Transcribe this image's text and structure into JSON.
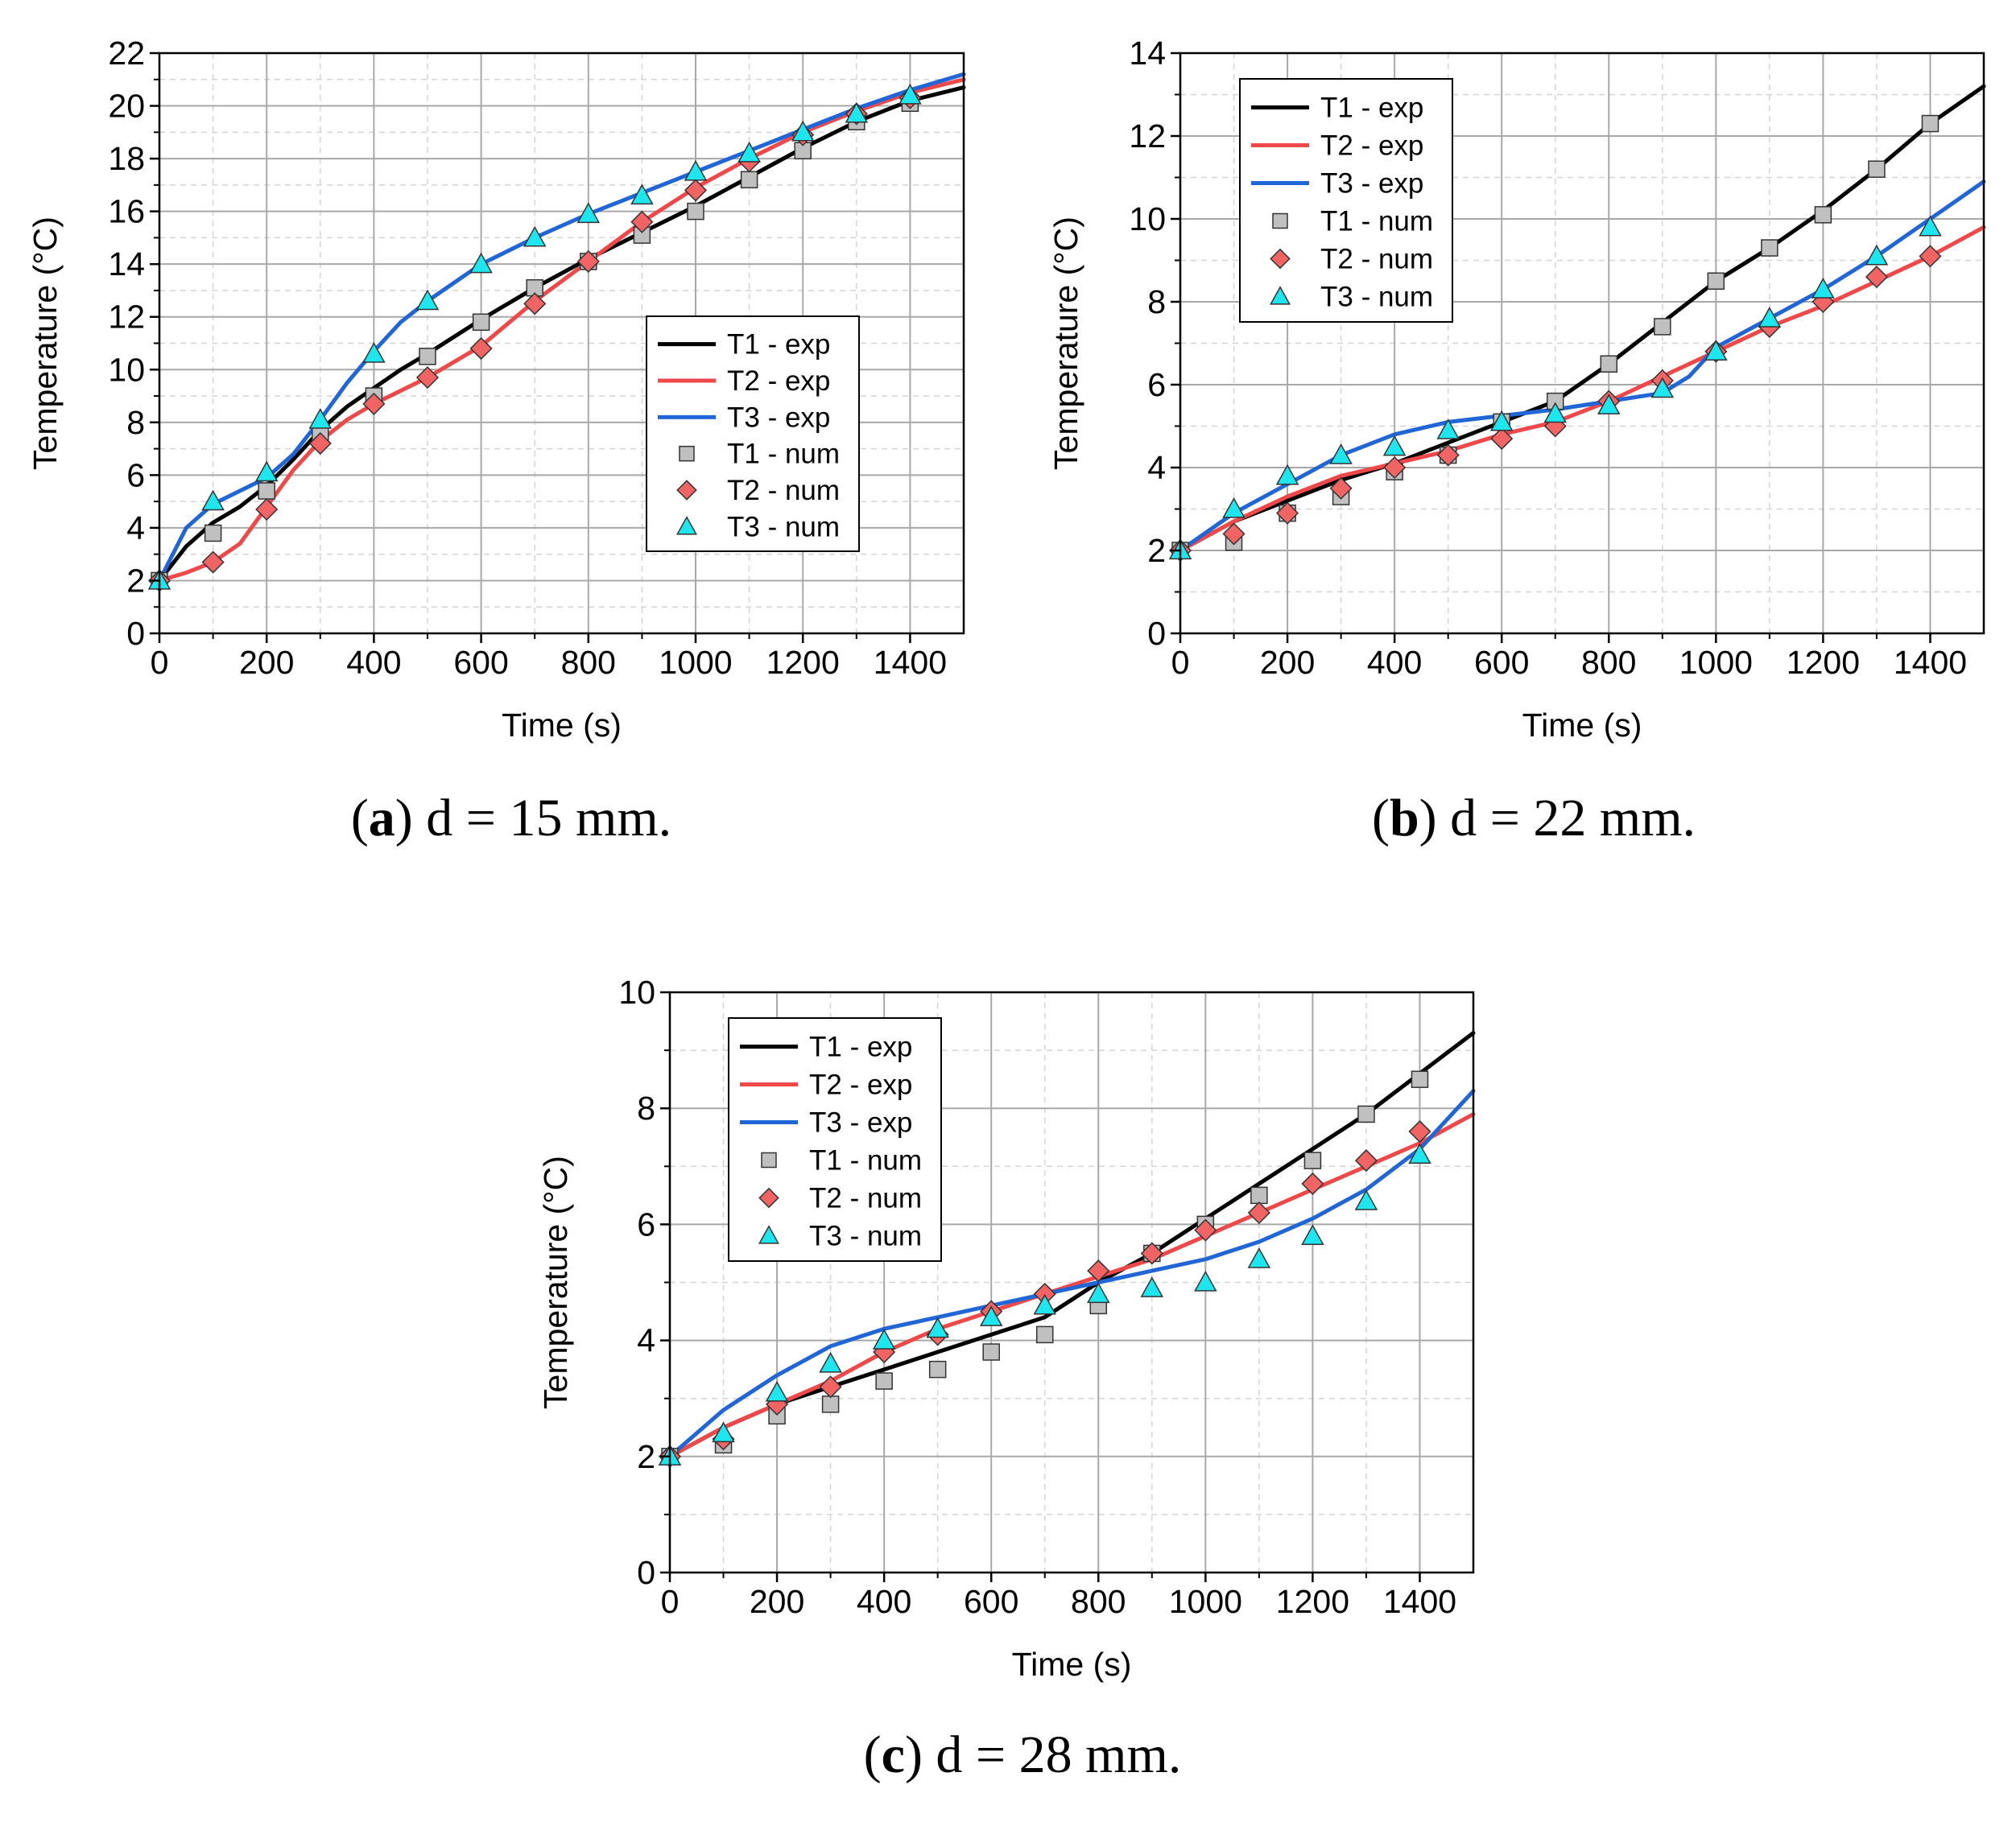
{
  "colors": {
    "T1": "#000000",
    "T2": "#f04848",
    "T3": "#2166d6",
    "T1_marker": "#c0c0c0",
    "T2_marker": "#f06464",
    "T3_marker": "#1ee6ee"
  },
  "chart_data": [
    {
      "type": "line",
      "panel": "a",
      "caption": {
        "label": "a",
        "text": "d = 15 mm."
      },
      "xlabel": "Time (s)",
      "ylabel": "Temperature (°C)",
      "xlim": [
        0,
        1500
      ],
      "ylim": [
        0,
        22
      ],
      "xticks": [
        0,
        200,
        400,
        600,
        800,
        1000,
        1200,
        1400
      ],
      "yticks": [
        0,
        2,
        4,
        6,
        8,
        10,
        12,
        14,
        16,
        18,
        20,
        22
      ],
      "grid": true,
      "legend_position": "center-right",
      "legend": [
        "T1 - exp",
        "T2 - exp",
        "T3 - exp",
        "T1 - num",
        "T2 - num",
        "T3 - num"
      ],
      "series": [
        {
          "name": "T1 - exp",
          "style": "line",
          "color_key": "T1",
          "x": [
            0,
            50,
            100,
            150,
            200,
            250,
            300,
            350,
            400,
            450,
            500,
            600,
            700,
            800,
            900,
            1000,
            1100,
            1200,
            1300,
            1400,
            1500
          ],
          "y": [
            2.0,
            3.3,
            4.2,
            4.8,
            5.6,
            6.6,
            7.7,
            8.6,
            9.3,
            10.0,
            10.6,
            11.9,
            13.1,
            14.2,
            15.2,
            16.2,
            17.3,
            18.4,
            19.4,
            20.2,
            20.7
          ]
        },
        {
          "name": "T2 - exp",
          "style": "line",
          "color_key": "T2",
          "x": [
            0,
            50,
            100,
            150,
            200,
            250,
            300,
            350,
            400,
            500,
            600,
            700,
            800,
            900,
            1000,
            1100,
            1200,
            1300,
            1400,
            1500
          ],
          "y": [
            2.0,
            2.3,
            2.7,
            3.4,
            4.8,
            6.2,
            7.3,
            8.1,
            8.7,
            9.7,
            10.9,
            12.6,
            14.1,
            15.6,
            16.9,
            18.0,
            19.0,
            19.8,
            20.5,
            21.0
          ]
        },
        {
          "name": "T3 - exp",
          "style": "line",
          "color_key": "T3",
          "x": [
            0,
            50,
            100,
            150,
            200,
            250,
            300,
            350,
            400,
            450,
            500,
            600,
            700,
            800,
            900,
            1000,
            1100,
            1200,
            1300,
            1400,
            1500
          ],
          "y": [
            2.0,
            4.0,
            4.9,
            5.4,
            5.9,
            6.8,
            8.1,
            9.5,
            10.7,
            11.8,
            12.6,
            14.0,
            15.0,
            15.9,
            16.7,
            17.5,
            18.3,
            19.1,
            19.9,
            20.6,
            21.2
          ]
        },
        {
          "name": "T1 - num",
          "style": "square",
          "color_key": "T1_marker",
          "x": [
            0,
            100,
            200,
            300,
            400,
            500,
            600,
            700,
            800,
            900,
            1000,
            1100,
            1200,
            1300,
            1400
          ],
          "y": [
            2.0,
            3.8,
            5.4,
            7.6,
            9.0,
            10.5,
            11.8,
            13.1,
            14.1,
            15.1,
            16.0,
            17.2,
            18.3,
            19.4,
            20.1
          ]
        },
        {
          "name": "T2 - num",
          "style": "diamond",
          "color_key": "T2_marker",
          "x": [
            0,
            100,
            200,
            300,
            400,
            500,
            600,
            700,
            800,
            900,
            1000,
            1100,
            1200,
            1300,
            1400
          ],
          "y": [
            2.0,
            2.7,
            4.7,
            7.2,
            8.7,
            9.7,
            10.8,
            12.5,
            14.1,
            15.6,
            16.8,
            17.9,
            18.9,
            19.7,
            20.3
          ]
        },
        {
          "name": "T3 - num",
          "style": "triangle",
          "color_key": "T3_marker",
          "x": [
            0,
            100,
            200,
            300,
            400,
            500,
            600,
            700,
            800,
            900,
            1000,
            1100,
            1200,
            1300,
            1400
          ],
          "y": [
            2.0,
            5.0,
            6.1,
            8.1,
            10.6,
            12.6,
            14.0,
            15.0,
            15.9,
            16.6,
            17.5,
            18.2,
            19.0,
            19.7,
            20.4
          ]
        }
      ]
    },
    {
      "type": "line",
      "panel": "b",
      "caption": {
        "label": "b",
        "text": "d = 22 mm."
      },
      "xlabel": "Time (s)",
      "ylabel": "Temperature (°C)",
      "xlim": [
        0,
        1500
      ],
      "ylim": [
        0,
        14
      ],
      "xticks": [
        0,
        200,
        400,
        600,
        800,
        1000,
        1200,
        1400
      ],
      "yticks": [
        0,
        2,
        4,
        6,
        8,
        10,
        12,
        14
      ],
      "grid": true,
      "legend_position": "top-left",
      "legend": [
        "T1 - exp",
        "T2 - exp",
        "T3 - exp",
        "T1 - num",
        "T2 - num",
        "T3 - num"
      ],
      "series": [
        {
          "name": "T1 - exp",
          "style": "line",
          "color_key": "T1",
          "x": [
            0,
            100,
            200,
            300,
            400,
            500,
            600,
            700,
            800,
            900,
            1000,
            1100,
            1200,
            1300,
            1400,
            1500
          ],
          "y": [
            2.0,
            2.7,
            3.2,
            3.7,
            4.1,
            4.6,
            5.1,
            5.6,
            6.5,
            7.5,
            8.5,
            9.3,
            10.2,
            11.2,
            12.3,
            13.2
          ]
        },
        {
          "name": "T2 - exp",
          "style": "line",
          "color_key": "T2",
          "x": [
            0,
            100,
            200,
            300,
            400,
            500,
            600,
            700,
            800,
            900,
            1000,
            1100,
            1200,
            1300,
            1400,
            1500
          ],
          "y": [
            2.0,
            2.7,
            3.3,
            3.8,
            4.1,
            4.4,
            4.8,
            5.1,
            5.6,
            6.2,
            6.8,
            7.4,
            7.9,
            8.5,
            9.1,
            9.8
          ]
        },
        {
          "name": "T3 - exp",
          "style": "line",
          "color_key": "T3",
          "x": [
            0,
            100,
            200,
            300,
            400,
            500,
            600,
            700,
            800,
            900,
            950,
            1000,
            1100,
            1200,
            1300,
            1400,
            1500
          ],
          "y": [
            2.0,
            2.9,
            3.6,
            4.3,
            4.8,
            5.1,
            5.25,
            5.4,
            5.6,
            5.8,
            6.2,
            6.9,
            7.6,
            8.3,
            9.1,
            10.0,
            10.9
          ]
        },
        {
          "name": "T1 - num",
          "style": "square",
          "color_key": "T1_marker",
          "x": [
            0,
            100,
            200,
            300,
            400,
            500,
            600,
            700,
            800,
            900,
            1000,
            1100,
            1200,
            1300,
            1400
          ],
          "y": [
            2.0,
            2.2,
            2.9,
            3.3,
            3.9,
            4.3,
            5.1,
            5.6,
            6.5,
            7.4,
            8.5,
            9.3,
            10.1,
            11.2,
            12.3
          ]
        },
        {
          "name": "T2 - num",
          "style": "diamond",
          "color_key": "T2_marker",
          "x": [
            0,
            100,
            200,
            300,
            400,
            500,
            600,
            700,
            800,
            900,
            1000,
            1100,
            1200,
            1300,
            1400
          ],
          "y": [
            2.0,
            2.4,
            2.9,
            3.5,
            4.0,
            4.3,
            4.7,
            5.0,
            5.6,
            6.1,
            6.8,
            7.4,
            8.0,
            8.6,
            9.1
          ]
        },
        {
          "name": "T3 - num",
          "style": "triangle",
          "color_key": "T3_marker",
          "x": [
            0,
            100,
            200,
            300,
            400,
            500,
            600,
            700,
            800,
            900,
            1000,
            1100,
            1200,
            1300,
            1400
          ],
          "y": [
            2.0,
            3.0,
            3.8,
            4.3,
            4.5,
            4.9,
            5.1,
            5.3,
            5.5,
            5.9,
            6.8,
            7.6,
            8.3,
            9.1,
            9.8
          ]
        }
      ]
    },
    {
      "type": "line",
      "panel": "c",
      "caption": {
        "label": "c",
        "text": "d = 28 mm."
      },
      "xlabel": "Time (s)",
      "ylabel": "Temperature (°C)",
      "xlim": [
        0,
        1500
      ],
      "ylim": [
        0,
        10
      ],
      "xticks": [
        0,
        200,
        400,
        600,
        800,
        1000,
        1200,
        1400
      ],
      "yticks": [
        0,
        2,
        4,
        6,
        8,
        10
      ],
      "grid": true,
      "legend_position": "top-left",
      "legend": [
        "T1 - exp",
        "T2 - exp",
        "T3 - exp",
        "T1 - num",
        "T2 - num",
        "T3 - num"
      ],
      "series": [
        {
          "name": "T1 - exp",
          "style": "line",
          "color_key": "T1",
          "x": [
            0,
            100,
            200,
            300,
            400,
            500,
            600,
            700,
            750,
            800,
            900,
            1000,
            1100,
            1200,
            1300,
            1400,
            1500
          ],
          "y": [
            2.0,
            2.5,
            2.9,
            3.2,
            3.5,
            3.8,
            4.1,
            4.4,
            4.7,
            5.0,
            5.5,
            6.1,
            6.7,
            7.3,
            7.9,
            8.6,
            9.3
          ]
        },
        {
          "name": "T2 - exp",
          "style": "line",
          "color_key": "T2",
          "x": [
            0,
            100,
            200,
            300,
            400,
            500,
            600,
            700,
            800,
            900,
            1000,
            1100,
            1200,
            1300,
            1400,
            1500
          ],
          "y": [
            2.0,
            2.5,
            2.9,
            3.3,
            3.8,
            4.2,
            4.5,
            4.8,
            5.1,
            5.4,
            5.8,
            6.2,
            6.6,
            7.0,
            7.4,
            7.9
          ]
        },
        {
          "name": "T3 - exp",
          "style": "line",
          "color_key": "T3",
          "x": [
            0,
            100,
            200,
            300,
            400,
            500,
            600,
            700,
            800,
            900,
            1000,
            1100,
            1200,
            1300,
            1400,
            1500
          ],
          "y": [
            2.0,
            2.8,
            3.4,
            3.9,
            4.2,
            4.4,
            4.6,
            4.8,
            5.0,
            5.2,
            5.4,
            5.7,
            6.1,
            6.6,
            7.3,
            8.3
          ]
        },
        {
          "name": "T1 - num",
          "style": "square",
          "color_key": "T1_marker",
          "x": [
            0,
            100,
            200,
            300,
            400,
            500,
            600,
            700,
            800,
            900,
            1000,
            1100,
            1200,
            1300,
            1400
          ],
          "y": [
            2.0,
            2.2,
            2.7,
            2.9,
            3.3,
            3.5,
            3.8,
            4.1,
            4.6,
            5.5,
            6.0,
            6.5,
            7.1,
            7.9,
            8.5
          ]
        },
        {
          "name": "T2 - num",
          "style": "diamond",
          "color_key": "T2_marker",
          "x": [
            0,
            100,
            200,
            300,
            400,
            500,
            600,
            700,
            800,
            900,
            1000,
            1100,
            1200,
            1300,
            1400
          ],
          "y": [
            2.0,
            2.3,
            2.9,
            3.2,
            3.8,
            4.1,
            4.5,
            4.8,
            5.2,
            5.5,
            5.9,
            6.2,
            6.7,
            7.1,
            7.6
          ]
        },
        {
          "name": "T3 - num",
          "style": "triangle",
          "color_key": "T3_marker",
          "x": [
            0,
            100,
            200,
            300,
            400,
            500,
            600,
            700,
            800,
            900,
            1000,
            1100,
            1200,
            1300,
            1400
          ],
          "y": [
            2.0,
            2.4,
            3.1,
            3.6,
            4.0,
            4.2,
            4.4,
            4.6,
            4.8,
            4.9,
            5.0,
            5.4,
            5.8,
            6.4,
            7.2
          ]
        }
      ]
    }
  ]
}
